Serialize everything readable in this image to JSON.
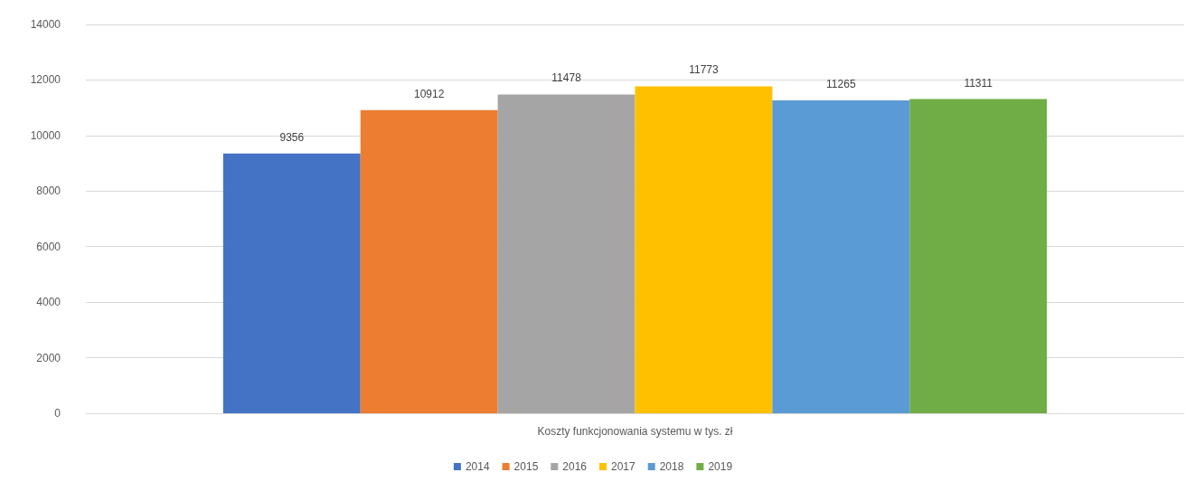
{
  "chart_data": {
    "type": "bar",
    "categories": [
      "Koszty funkcjonowania systemu w tys. zł"
    ],
    "series": [
      {
        "name": "2014",
        "color": "#4472c4",
        "values": [
          9356
        ]
      },
      {
        "name": "2015",
        "color": "#ed7d31",
        "values": [
          10912
        ]
      },
      {
        "name": "2016",
        "color": "#a5a5a5",
        "values": [
          11478
        ]
      },
      {
        "name": "2017",
        "color": "#ffc000",
        "values": [
          11773
        ]
      },
      {
        "name": "2018",
        "color": "#5b9bd5",
        "values": [
          11265
        ]
      },
      {
        "name": "2019",
        "color": "#70ad47",
        "values": [
          11311
        ]
      }
    ],
    "ylim": [
      0,
      14000
    ],
    "yticks": [
      0,
      2000,
      4000,
      6000,
      8000,
      10000,
      12000,
      14000
    ],
    "grid": "y",
    "data_labels": true,
    "legend": "bottom"
  }
}
